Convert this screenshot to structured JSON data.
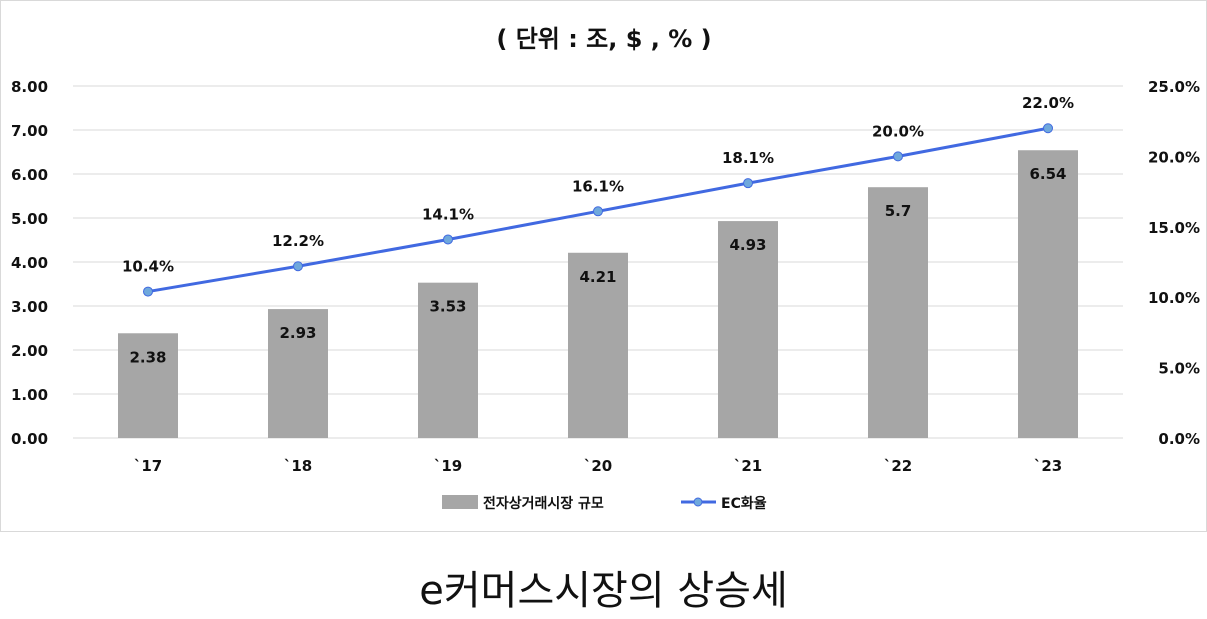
{
  "caption": "e커머스시장의 상승세",
  "chart_data": {
    "type": "bar",
    "title": "( 단위 : 조, $ , % )",
    "categories": [
      "`17",
      "`18",
      "`19",
      "`20",
      "`21",
      "`22",
      "`23"
    ],
    "series": [
      {
        "name": "전자상거래시장  규모",
        "type": "bar",
        "axis": "left",
        "color": "#a6a6a6",
        "values": [
          2.38,
          2.93,
          3.53,
          4.21,
          4.93,
          5.7,
          6.54
        ],
        "labels": [
          "2.38",
          "2.93",
          "3.53",
          "4.21",
          "4.93",
          "5.7",
          "6.54"
        ]
      },
      {
        "name": "EC화율",
        "type": "line",
        "axis": "right",
        "color": "#4169e1",
        "marker_color": "#6fa8dc",
        "values": [
          10.4,
          12.2,
          14.1,
          16.1,
          18.1,
          20.0,
          22.0
        ],
        "labels": [
          "10.4%",
          "12.2%",
          "14.1%",
          "16.1%",
          "18.1%",
          "20.0%",
          "22.0%"
        ]
      }
    ],
    "y_left": {
      "ylim": [
        0,
        8
      ],
      "ticks": [
        "0.00",
        "1.00",
        "2.00",
        "3.00",
        "4.00",
        "5.00",
        "6.00",
        "7.00",
        "8.00"
      ]
    },
    "y_right": {
      "ylim": [
        0,
        25
      ],
      "ticks": [
        "0.0%",
        "5.0%",
        "10.0%",
        "15.0%",
        "20.0%",
        "25.0%"
      ]
    },
    "grid": true,
    "gridline_color": "#d9d9d9",
    "legend_position": "bottom"
  }
}
